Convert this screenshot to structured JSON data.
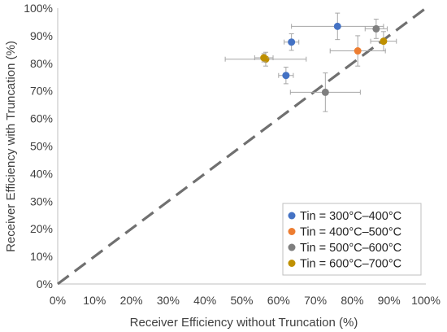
{
  "chart_data": {
    "type": "scatter",
    "xlabel": "Receiver Efficiency without Truncation (%)",
    "ylabel": "Receiver Efficiency with Truncation (%)",
    "xlim": [
      0,
      100
    ],
    "ylim": [
      0,
      100
    ],
    "x_ticks": [
      "0%",
      "10%",
      "20%",
      "30%",
      "40%",
      "50%",
      "60%",
      "70%",
      "80%",
      "90%",
      "100%"
    ],
    "y_ticks": [
      "0%",
      "10%",
      "20%",
      "30%",
      "40%",
      "50%",
      "60%",
      "70%",
      "80%",
      "90%",
      "100%"
    ],
    "grid": false,
    "legend_position": "bottom-right",
    "reference_line": {
      "style": "dashed",
      "color": "#707070",
      "from": [
        0,
        0
      ],
      "to": [
        100,
        100
      ]
    },
    "series": [
      {
        "name": "Tin = 300°C–400°C",
        "color": "#4472C4",
        "points": [
          {
            "x": 76.0,
            "y": 93.4,
            "xerr": 12.5,
            "yerr": 4.8
          },
          {
            "x": 63.5,
            "y": 87.7,
            "xerr": 2.0,
            "yerr": 3.0
          },
          {
            "x": 62.0,
            "y": 75.6,
            "xerr": 2.0,
            "yerr": 3.0
          }
        ]
      },
      {
        "name": "Tin = 400°C–500°C",
        "color": "#ED7D31",
        "points": [
          {
            "x": 81.5,
            "y": 84.5,
            "xerr": 7.5,
            "yerr": 5.5
          }
        ]
      },
      {
        "name": "Tin = 500°C–600°C",
        "color": "#7F7F7F",
        "points": [
          {
            "x": 86.5,
            "y": 92.5,
            "xerr": 3.0,
            "yerr": 3.5
          },
          {
            "x": 72.7,
            "y": 69.5,
            "xerr": 9.5,
            "yerr": 7.0
          }
        ]
      },
      {
        "name": "Tin = 600°C–700°C",
        "color": "#BF9000",
        "points": [
          {
            "x": 88.5,
            "y": 88.0,
            "xerr": 3.5,
            "yerr": 3.5
          },
          {
            "x": 56.5,
            "y": 81.5,
            "xerr": 11.0,
            "yerr": 2.5
          },
          {
            "x": 56.0,
            "y": 82.0,
            "xerr": 2.5,
            "yerr": 1.5
          }
        ]
      }
    ]
  }
}
